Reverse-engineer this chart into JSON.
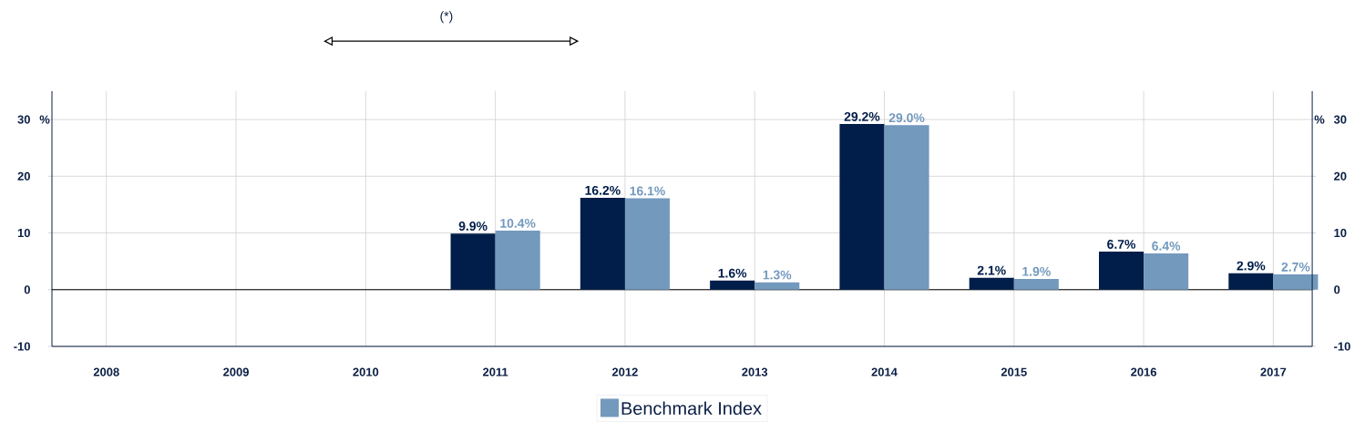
{
  "chart_data": {
    "type": "bar",
    "categories": [
      "2008",
      "2009",
      "2010",
      "2011",
      "2012",
      "2013",
      "2014",
      "2015",
      "2016",
      "2017"
    ],
    "series": [
      {
        "color": "#011e4a",
        "values": [
          null,
          null,
          null,
          9.9,
          16.2,
          1.6,
          29.2,
          2.1,
          6.7,
          2.9
        ],
        "value_labels": [
          null,
          null,
          null,
          "9.9%",
          "16.2%",
          "1.6%",
          "29.2%",
          "2.1%",
          "6.7%",
          "2.9%"
        ]
      },
      {
        "name": "Benchmark Index",
        "color": "#7399bd",
        "values": [
          null,
          null,
          null,
          10.4,
          16.1,
          1.3,
          29.0,
          1.9,
          6.4,
          2.7
        ],
        "value_labels": [
          null,
          null,
          null,
          "10.4%",
          "16.1%",
          "1.3%",
          "29.0%",
          "1.9%",
          "6.4%",
          "2.7%"
        ]
      }
    ],
    "ylim": [
      -10,
      35
    ],
    "yticks": [
      -10,
      0,
      10,
      20,
      30
    ],
    "y2lim": [
      -10,
      35
    ],
    "y2ticks": [
      -10,
      0,
      10,
      20,
      30
    ],
    "grid": true,
    "legend": "bottom",
    "annotations": [
      "(*)",
      "%",
      "%"
    ]
  }
}
